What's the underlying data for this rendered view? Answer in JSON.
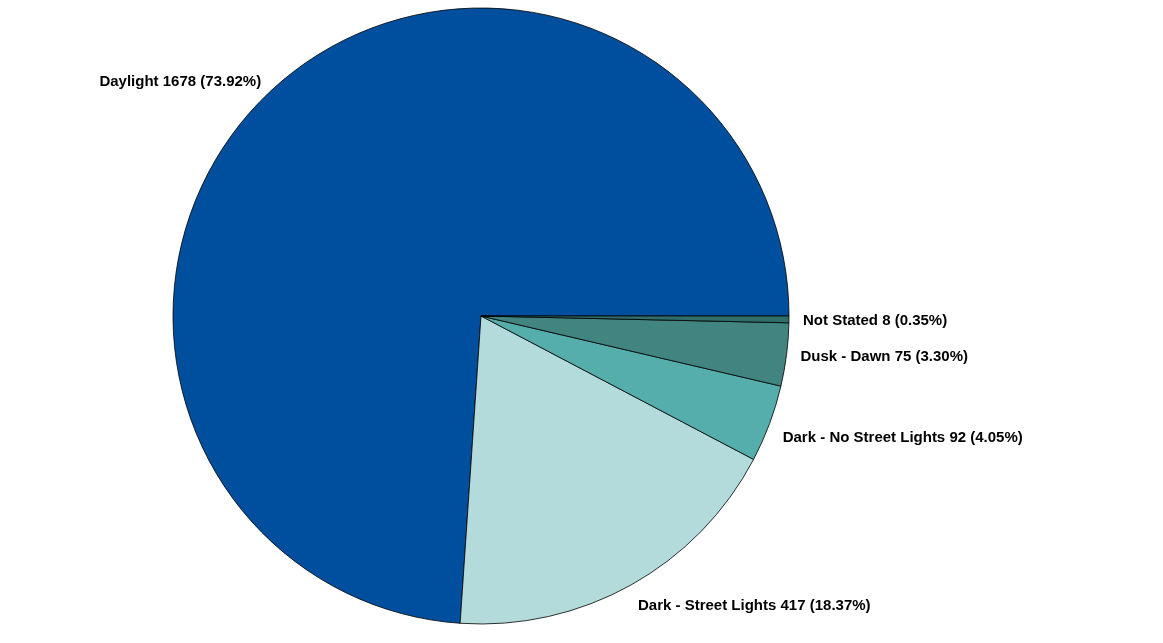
{
  "chart_data": {
    "type": "pie",
    "categories": [
      "Daylight",
      "Dark - Street Lights",
      "Dark - No Street Lights",
      "Dusk - Dawn",
      "Not Stated"
    ],
    "values": [
      1678,
      417,
      92,
      75,
      8
    ],
    "value_labels": [
      "1678 (73.92%)",
      "417 (18.37%)",
      "92 (4.05%)",
      "75 (3.30%)",
      "8 (0.35%)"
    ],
    "colors": [
      "#004f9e",
      "#b3dbdb",
      "#55aeab",
      "#418480",
      "#2f6e6b"
    ]
  }
}
